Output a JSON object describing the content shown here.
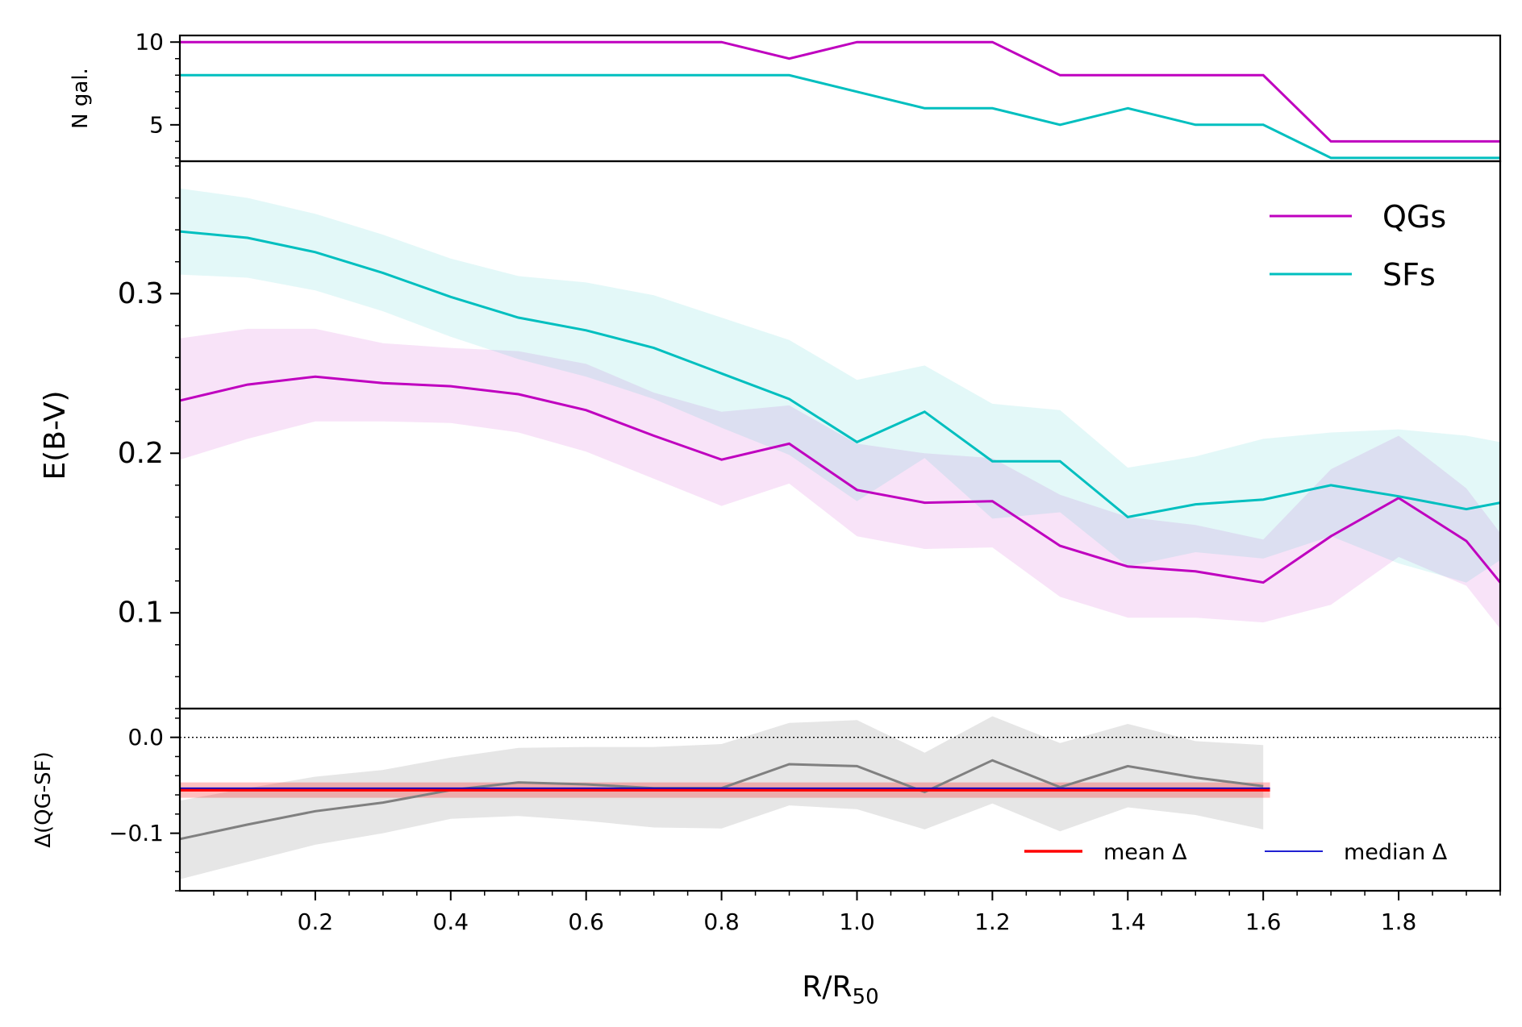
{
  "chart_data": [
    {
      "panel": "top",
      "type": "line",
      "ylabel": "N gal.",
      "ylim": [
        2.8,
        10.4
      ],
      "yticks": [
        {
          "v": 5,
          "label": "5"
        },
        {
          "v": 10,
          "label": "10"
        }
      ],
      "x": [
        0.0,
        0.1,
        0.2,
        0.3,
        0.4,
        0.5,
        0.6,
        0.7,
        0.8,
        0.9,
        1.0,
        1.1,
        1.2,
        1.3,
        1.4,
        1.5,
        1.6,
        1.7,
        1.8,
        1.9,
        1.95
      ],
      "series": [
        {
          "name": "QGs",
          "color": "#bf00bf",
          "values": [
            10,
            10,
            10,
            10,
            10,
            10,
            10,
            10,
            10,
            9,
            10,
            10,
            10,
            8,
            8,
            8,
            8,
            4,
            4,
            4,
            4
          ]
        },
        {
          "name": "SFs",
          "color": "#00bfbf",
          "values": [
            8,
            8,
            8,
            8,
            8,
            8,
            8,
            8,
            8,
            8,
            7,
            6,
            6,
            5,
            6,
            5,
            5,
            3,
            3,
            3,
            3
          ]
        }
      ]
    },
    {
      "panel": "middle",
      "type": "line",
      "ylabel": "E(B-V)",
      "ylim": [
        0.04,
        0.383
      ],
      "yticks": [
        {
          "v": 0.1,
          "label": "0.1"
        },
        {
          "v": 0.2,
          "label": "0.2"
        },
        {
          "v": 0.3,
          "label": "0.3"
        }
      ],
      "x": [
        0.0,
        0.1,
        0.2,
        0.3,
        0.4,
        0.5,
        0.6,
        0.7,
        0.8,
        0.9,
        1.0,
        1.1,
        1.2,
        1.3,
        1.4,
        1.5,
        1.6,
        1.7,
        1.8,
        1.9,
        1.95
      ],
      "series": [
        {
          "name": "QGs",
          "color": "#bf00bf",
          "values": [
            0.233,
            0.243,
            0.248,
            0.244,
            0.242,
            0.237,
            0.227,
            0.211,
            0.196,
            0.206,
            0.177,
            0.169,
            0.17,
            0.142,
            0.129,
            0.126,
            0.119,
            0.148,
            0.172,
            0.145,
            0.119
          ],
          "band_upper": [
            0.272,
            0.278,
            0.278,
            0.269,
            0.266,
            0.264,
            0.256,
            0.238,
            0.226,
            0.23,
            0.206,
            0.2,
            0.197,
            0.174,
            0.16,
            0.155,
            0.146,
            0.19,
            0.211,
            0.178,
            0.15
          ],
          "band_lower": [
            0.196,
            0.209,
            0.22,
            0.22,
            0.219,
            0.213,
            0.201,
            0.184,
            0.167,
            0.181,
            0.148,
            0.14,
            0.141,
            0.11,
            0.097,
            0.097,
            0.094,
            0.105,
            0.135,
            0.117,
            0.09
          ]
        },
        {
          "name": "SFs",
          "color": "#00bfbf",
          "values": [
            0.339,
            0.335,
            0.326,
            0.313,
            0.298,
            0.285,
            0.277,
            0.266,
            0.25,
            0.234,
            0.207,
            0.226,
            0.195,
            0.195,
            0.16,
            0.168,
            0.171,
            0.18,
            0.173,
            0.165,
            0.169
          ],
          "band_upper": [
            0.366,
            0.36,
            0.35,
            0.337,
            0.322,
            0.311,
            0.307,
            0.299,
            0.285,
            0.271,
            0.246,
            0.255,
            0.231,
            0.227,
            0.191,
            0.198,
            0.209,
            0.213,
            0.215,
            0.211,
            0.207
          ],
          "band_lower": [
            0.312,
            0.31,
            0.302,
            0.289,
            0.273,
            0.259,
            0.248,
            0.234,
            0.216,
            0.199,
            0.17,
            0.197,
            0.159,
            0.163,
            0.129,
            0.138,
            0.134,
            0.148,
            0.131,
            0.119,
            0.133
          ]
        }
      ],
      "legend": {
        "placement": "top-right",
        "entries": [
          "QGs",
          "SFs"
        ]
      }
    },
    {
      "panel": "bottom",
      "type": "line",
      "ylabel": "Δ(QG-SF)",
      "xlabel_main": "R/R",
      "xlabel_sub": "50",
      "xlim": [
        0.0,
        1.95
      ],
      "ylim": [
        -0.16,
        0.03
      ],
      "yticks": [
        {
          "v": 0.0,
          "label": "0.0"
        },
        {
          "v": -0.1,
          "label": "−0.1"
        }
      ],
      "xticks": [
        0.2,
        0.4,
        0.6,
        0.8,
        1.0,
        1.2,
        1.4,
        1.6,
        1.8
      ],
      "xtick_labels": [
        "0.2",
        "0.4",
        "0.6",
        "0.8",
        "1.0",
        "1.2",
        "1.4",
        "1.6",
        "1.8"
      ],
      "x": [
        0.0,
        0.1,
        0.2,
        0.3,
        0.4,
        0.5,
        0.6,
        0.7,
        0.8,
        0.9,
        1.0,
        1.1,
        1.2,
        1.3,
        1.4,
        1.5,
        1.6
      ],
      "delta": {
        "color": "#808080",
        "values": [
          -0.106,
          -0.091,
          -0.077,
          -0.068,
          -0.055,
          -0.047,
          -0.049,
          -0.053,
          -0.053,
          -0.028,
          -0.03,
          -0.057,
          -0.024,
          -0.052,
          -0.03,
          -0.042,
          -0.051
        ],
        "band_upper": [
          -0.066,
          -0.053,
          -0.041,
          -0.034,
          -0.021,
          -0.011,
          -0.01,
          -0.01,
          -0.007,
          0.015,
          0.018,
          -0.016,
          0.022,
          -0.006,
          0.014,
          -0.004,
          -0.008
        ],
        "band_lower": [
          -0.148,
          -0.13,
          -0.112,
          -0.1,
          -0.085,
          -0.082,
          -0.087,
          -0.094,
          -0.095,
          -0.071,
          -0.075,
          -0.096,
          -0.069,
          -0.098,
          -0.073,
          -0.081,
          -0.096
        ]
      },
      "mean_delta": {
        "label": "mean Δ",
        "color": "#ff0000",
        "value": -0.055,
        "band": [
          -0.063,
          -0.047
        ],
        "x_range": [
          0.0,
          1.61
        ]
      },
      "median_delta": {
        "label": "median Δ",
        "color": "#0000cc",
        "value": -0.053,
        "x_range": [
          0.0,
          1.61
        ]
      },
      "zero_line": 0.0
    }
  ]
}
